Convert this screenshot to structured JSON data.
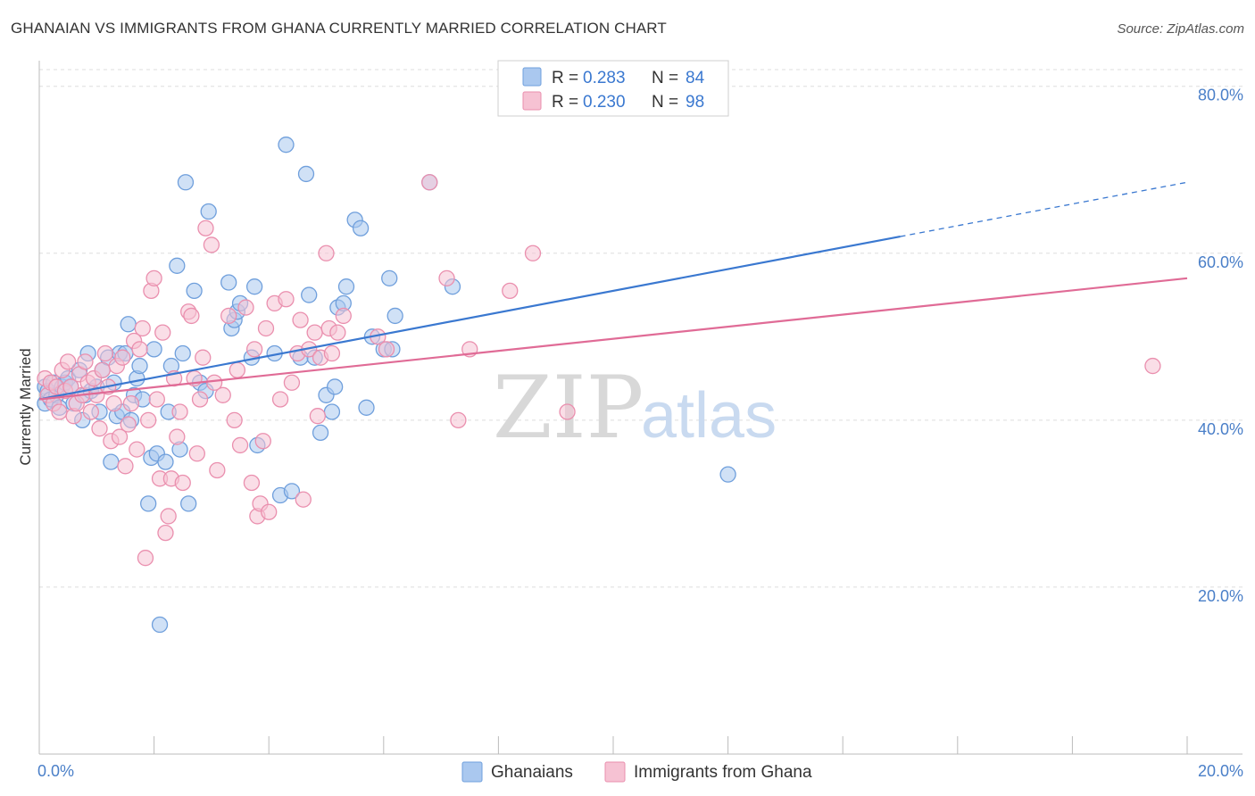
{
  "header": {
    "title": "GHANAIAN VS IMMIGRANTS FROM GHANA CURRENTLY MARRIED CORRELATION CHART",
    "source": "Source: ZipAtlas.com"
  },
  "watermark": {
    "zip": "ZIP",
    "atlas": "atlas"
  },
  "colors": {
    "blue_fill": "#aac8ef",
    "blue_stroke": "#6f9fdc",
    "blue_line": "#3a78d0",
    "pink_fill": "#f6c2d3",
    "pink_stroke": "#ea8fae",
    "pink_line": "#e06b96",
    "tick_text": "#4a7fc8",
    "grid": "#dddddd"
  },
  "legend_top": {
    "rows": [
      {
        "r_label": "R = ",
        "r_value": "0.283",
        "n_label": "N = ",
        "n_value": "84"
      },
      {
        "r_label": "R = ",
        "r_value": "0.230",
        "n_label": "N = ",
        "n_value": "98"
      }
    ]
  },
  "legend_bottom": {
    "items": [
      {
        "label": "Ghanaians"
      },
      {
        "label": "Immigrants from Ghana"
      }
    ]
  },
  "chart_data": {
    "type": "scatter",
    "title": "GHANAIAN VS IMMIGRANTS FROM GHANA CURRENTLY MARRIED CORRELATION CHART",
    "xlabel": "",
    "ylabel": "Currently Married",
    "xlim": [
      0,
      20
    ],
    "ylim": [
      0,
      82
    ],
    "x_ticks": [
      {
        "value": 0,
        "label": "0.0%"
      },
      {
        "value": 20,
        "label": "20.0%"
      }
    ],
    "y_ticks": [
      {
        "value": 20,
        "label": "20.0%"
      },
      {
        "value": 40,
        "label": "40.0%"
      },
      {
        "value": 60,
        "label": "60.0%"
      },
      {
        "value": 80,
        "label": "80.0%"
      }
    ],
    "grid": true,
    "legend_placement": "top-center",
    "series": [
      {
        "name": "Ghanaians",
        "r": 0.283,
        "n": 84,
        "trend": {
          "x0": 0,
          "y0": 42.5,
          "x1": 15,
          "y1": 62,
          "dashed_to_x": 20,
          "dashed_to_y": 68.5
        },
        "points": [
          [
            0.1,
            44
          ],
          [
            0.1,
            42
          ],
          [
            0.15,
            43.5
          ],
          [
            0.2,
            42.5
          ],
          [
            0.25,
            44.5
          ],
          [
            0.3,
            43
          ],
          [
            0.35,
            41.5
          ],
          [
            0.4,
            44
          ],
          [
            0.45,
            44.5
          ],
          [
            0.5,
            45
          ],
          [
            0.55,
            44
          ],
          [
            0.6,
            42
          ],
          [
            0.7,
            46
          ],
          [
            0.75,
            40
          ],
          [
            0.8,
            43
          ],
          [
            0.85,
            48
          ],
          [
            0.9,
            43.5
          ],
          [
            1.0,
            44
          ],
          [
            1.05,
            41
          ],
          [
            1.1,
            46
          ],
          [
            1.2,
            47.5
          ],
          [
            1.25,
            35
          ],
          [
            1.3,
            44.5
          ],
          [
            1.35,
            40.5
          ],
          [
            1.4,
            48
          ],
          [
            1.45,
            41
          ],
          [
            1.5,
            48
          ],
          [
            1.55,
            51.5
          ],
          [
            1.6,
            40
          ],
          [
            1.65,
            43
          ],
          [
            1.7,
            45
          ],
          [
            1.75,
            46.5
          ],
          [
            1.8,
            42.5
          ],
          [
            1.9,
            30
          ],
          [
            1.95,
            35.5
          ],
          [
            2.0,
            48.5
          ],
          [
            2.05,
            36
          ],
          [
            2.1,
            15.5
          ],
          [
            2.2,
            35
          ],
          [
            2.25,
            41
          ],
          [
            2.3,
            46.5
          ],
          [
            2.4,
            58.5
          ],
          [
            2.45,
            36.5
          ],
          [
            2.5,
            48
          ],
          [
            2.55,
            68.5
          ],
          [
            2.6,
            30
          ],
          [
            2.7,
            55.5
          ],
          [
            2.8,
            44.5
          ],
          [
            2.9,
            43.5
          ],
          [
            2.95,
            65
          ],
          [
            3.3,
            56.5
          ],
          [
            3.35,
            51
          ],
          [
            3.4,
            52
          ],
          [
            3.45,
            53
          ],
          [
            3.5,
            54
          ],
          [
            3.7,
            47.5
          ],
          [
            3.75,
            56
          ],
          [
            3.8,
            37
          ],
          [
            4.1,
            48
          ],
          [
            4.2,
            31
          ],
          [
            4.3,
            73
          ],
          [
            4.4,
            31.5
          ],
          [
            4.55,
            47.5
          ],
          [
            4.65,
            69.5
          ],
          [
            4.7,
            55
          ],
          [
            4.8,
            47.5
          ],
          [
            4.9,
            38.5
          ],
          [
            5.0,
            43
          ],
          [
            5.1,
            41
          ],
          [
            5.15,
            44
          ],
          [
            5.2,
            53.5
          ],
          [
            5.3,
            54
          ],
          [
            5.35,
            56
          ],
          [
            5.5,
            64
          ],
          [
            5.6,
            63
          ],
          [
            5.7,
            41.5
          ],
          [
            5.8,
            50
          ],
          [
            6.0,
            48.5
          ],
          [
            6.1,
            57
          ],
          [
            6.15,
            48.5
          ],
          [
            6.2,
            52.5
          ],
          [
            6.8,
            68.5
          ],
          [
            7.2,
            56
          ],
          [
            12.0,
            33.5
          ]
        ]
      },
      {
        "name": "Immigrants from Ghana",
        "r": 0.23,
        "n": 98,
        "trend": {
          "x0": 0,
          "y0": 42.5,
          "x1": 20,
          "y1": 57
        },
        "points": [
          [
            0.1,
            45
          ],
          [
            0.15,
            43
          ],
          [
            0.2,
            44.5
          ],
          [
            0.25,
            42
          ],
          [
            0.3,
            44
          ],
          [
            0.35,
            41
          ],
          [
            0.4,
            46
          ],
          [
            0.45,
            43.5
          ],
          [
            0.5,
            47
          ],
          [
            0.55,
            44
          ],
          [
            0.6,
            40.5
          ],
          [
            0.65,
            42
          ],
          [
            0.7,
            45.5
          ],
          [
            0.75,
            43
          ],
          [
            0.8,
            47
          ],
          [
            0.85,
            44.5
          ],
          [
            0.9,
            41
          ],
          [
            0.95,
            45
          ],
          [
            1.0,
            43
          ],
          [
            1.05,
            39
          ],
          [
            1.1,
            46
          ],
          [
            1.15,
            48
          ],
          [
            1.2,
            44
          ],
          [
            1.25,
            37.5
          ],
          [
            1.3,
            42
          ],
          [
            1.35,
            46.5
          ],
          [
            1.4,
            38
          ],
          [
            1.45,
            47.5
          ],
          [
            1.5,
            34.5
          ],
          [
            1.55,
            39.5
          ],
          [
            1.6,
            42
          ],
          [
            1.65,
            49.5
          ],
          [
            1.7,
            36.5
          ],
          [
            1.75,
            48.5
          ],
          [
            1.8,
            51
          ],
          [
            1.85,
            23.5
          ],
          [
            1.9,
            40
          ],
          [
            1.95,
            55.5
          ],
          [
            2.0,
            57
          ],
          [
            2.05,
            42.5
          ],
          [
            2.1,
            33
          ],
          [
            2.15,
            50.5
          ],
          [
            2.2,
            26.5
          ],
          [
            2.25,
            28.5
          ],
          [
            2.3,
            33
          ],
          [
            2.35,
            45
          ],
          [
            2.4,
            38
          ],
          [
            2.45,
            41
          ],
          [
            2.5,
            32.5
          ],
          [
            2.6,
            53
          ],
          [
            2.65,
            52.5
          ],
          [
            2.7,
            45
          ],
          [
            2.75,
            36
          ],
          [
            2.8,
            42.5
          ],
          [
            2.85,
            47.5
          ],
          [
            2.9,
            63
          ],
          [
            3.0,
            61
          ],
          [
            3.05,
            44.5
          ],
          [
            3.1,
            34
          ],
          [
            3.2,
            43
          ],
          [
            3.3,
            52.5
          ],
          [
            3.4,
            40
          ],
          [
            3.45,
            46
          ],
          [
            3.5,
            37
          ],
          [
            3.6,
            53.5
          ],
          [
            3.7,
            32.5
          ],
          [
            3.75,
            48.5
          ],
          [
            3.8,
            28.5
          ],
          [
            3.85,
            30
          ],
          [
            3.9,
            37.5
          ],
          [
            3.95,
            51
          ],
          [
            4.0,
            29
          ],
          [
            4.1,
            54
          ],
          [
            4.2,
            42.5
          ],
          [
            4.3,
            54.5
          ],
          [
            4.4,
            44.5
          ],
          [
            4.5,
            48
          ],
          [
            4.55,
            52
          ],
          [
            4.6,
            30.5
          ],
          [
            4.7,
            48.5
          ],
          [
            4.8,
            50.5
          ],
          [
            4.85,
            40.5
          ],
          [
            4.9,
            47.5
          ],
          [
            5.0,
            60
          ],
          [
            5.05,
            51
          ],
          [
            5.1,
            48
          ],
          [
            5.2,
            50.5
          ],
          [
            5.3,
            52.5
          ],
          [
            5.9,
            50
          ],
          [
            6.05,
            48.5
          ],
          [
            6.8,
            68.5
          ],
          [
            7.1,
            57
          ],
          [
            7.3,
            40
          ],
          [
            7.5,
            48.5
          ],
          [
            8.2,
            55.5
          ],
          [
            8.6,
            60
          ],
          [
            9.2,
            41
          ],
          [
            19.4,
            46.5
          ]
        ]
      }
    ]
  }
}
